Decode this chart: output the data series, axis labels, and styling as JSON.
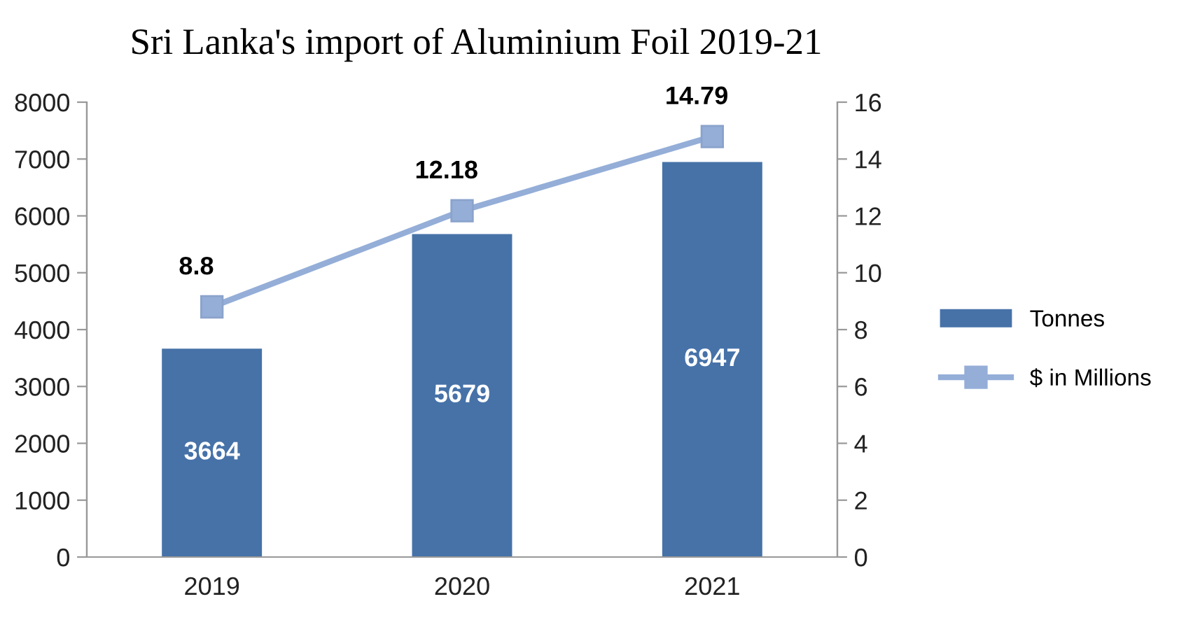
{
  "chart_data": {
    "type": "bar",
    "title": "Sri Lanka's import of Aluminium Foil 2019-21",
    "categories": [
      "2019",
      "2020",
      "2021"
    ],
    "series": [
      {
        "name": "Tonnes",
        "color": "#4672a8",
        "values": [
          3664,
          5679,
          6947
        ]
      },
      {
        "name": "$ in Millions",
        "type": "line",
        "axis": "y2",
        "color": "#94aed8",
        "marker": "square",
        "values": [
          8.8,
          12.18,
          14.79
        ]
      }
    ],
    "ylim": [
      0,
      8000
    ],
    "yticks": [
      0,
      1000,
      2000,
      3000,
      4000,
      5000,
      6000,
      7000,
      8000
    ],
    "y2lim": [
      0,
      16
    ],
    "y2ticks": [
      0,
      2,
      4,
      6,
      8,
      10,
      12,
      14,
      16
    ],
    "data_labels": true,
    "legend": "right",
    "grid": false
  }
}
